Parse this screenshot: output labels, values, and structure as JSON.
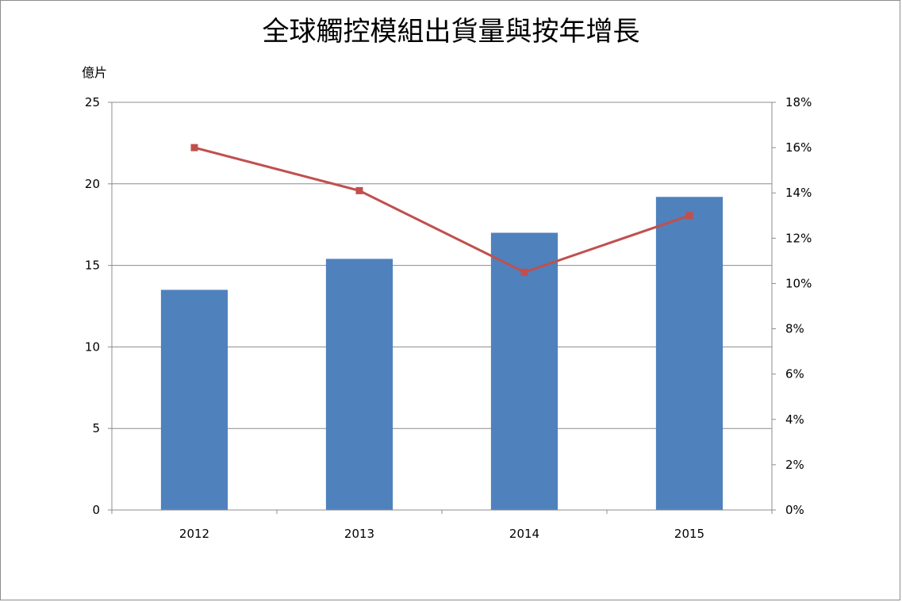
{
  "chart_data": {
    "type": "bar",
    "title": "全球觸控模組出貨量與按年增長",
    "y_unit": "億片",
    "categories": [
      "2012",
      "2013",
      "2014",
      "2015"
    ],
    "series": [
      {
        "type": "bar",
        "values": [
          13.5,
          15.4,
          17.0,
          19.2
        ],
        "axis": "left",
        "color": "#4f81bd"
      },
      {
        "type": "line",
        "values": [
          16.0,
          14.1,
          10.5,
          13.0
        ],
        "axis": "right",
        "unit": "%",
        "color": "#c0504d"
      }
    ],
    "ylim_left": [
      0,
      25
    ],
    "yticks_left": [
      "0",
      "5",
      "10",
      "15",
      "20",
      "25"
    ],
    "ylim_right": [
      0,
      18
    ],
    "yticks_right": [
      "0%",
      "2%",
      "4%",
      "6%",
      "8%",
      "10%",
      "12%",
      "14%",
      "16%",
      "18%"
    ],
    "grid": true,
    "legend": "none"
  }
}
